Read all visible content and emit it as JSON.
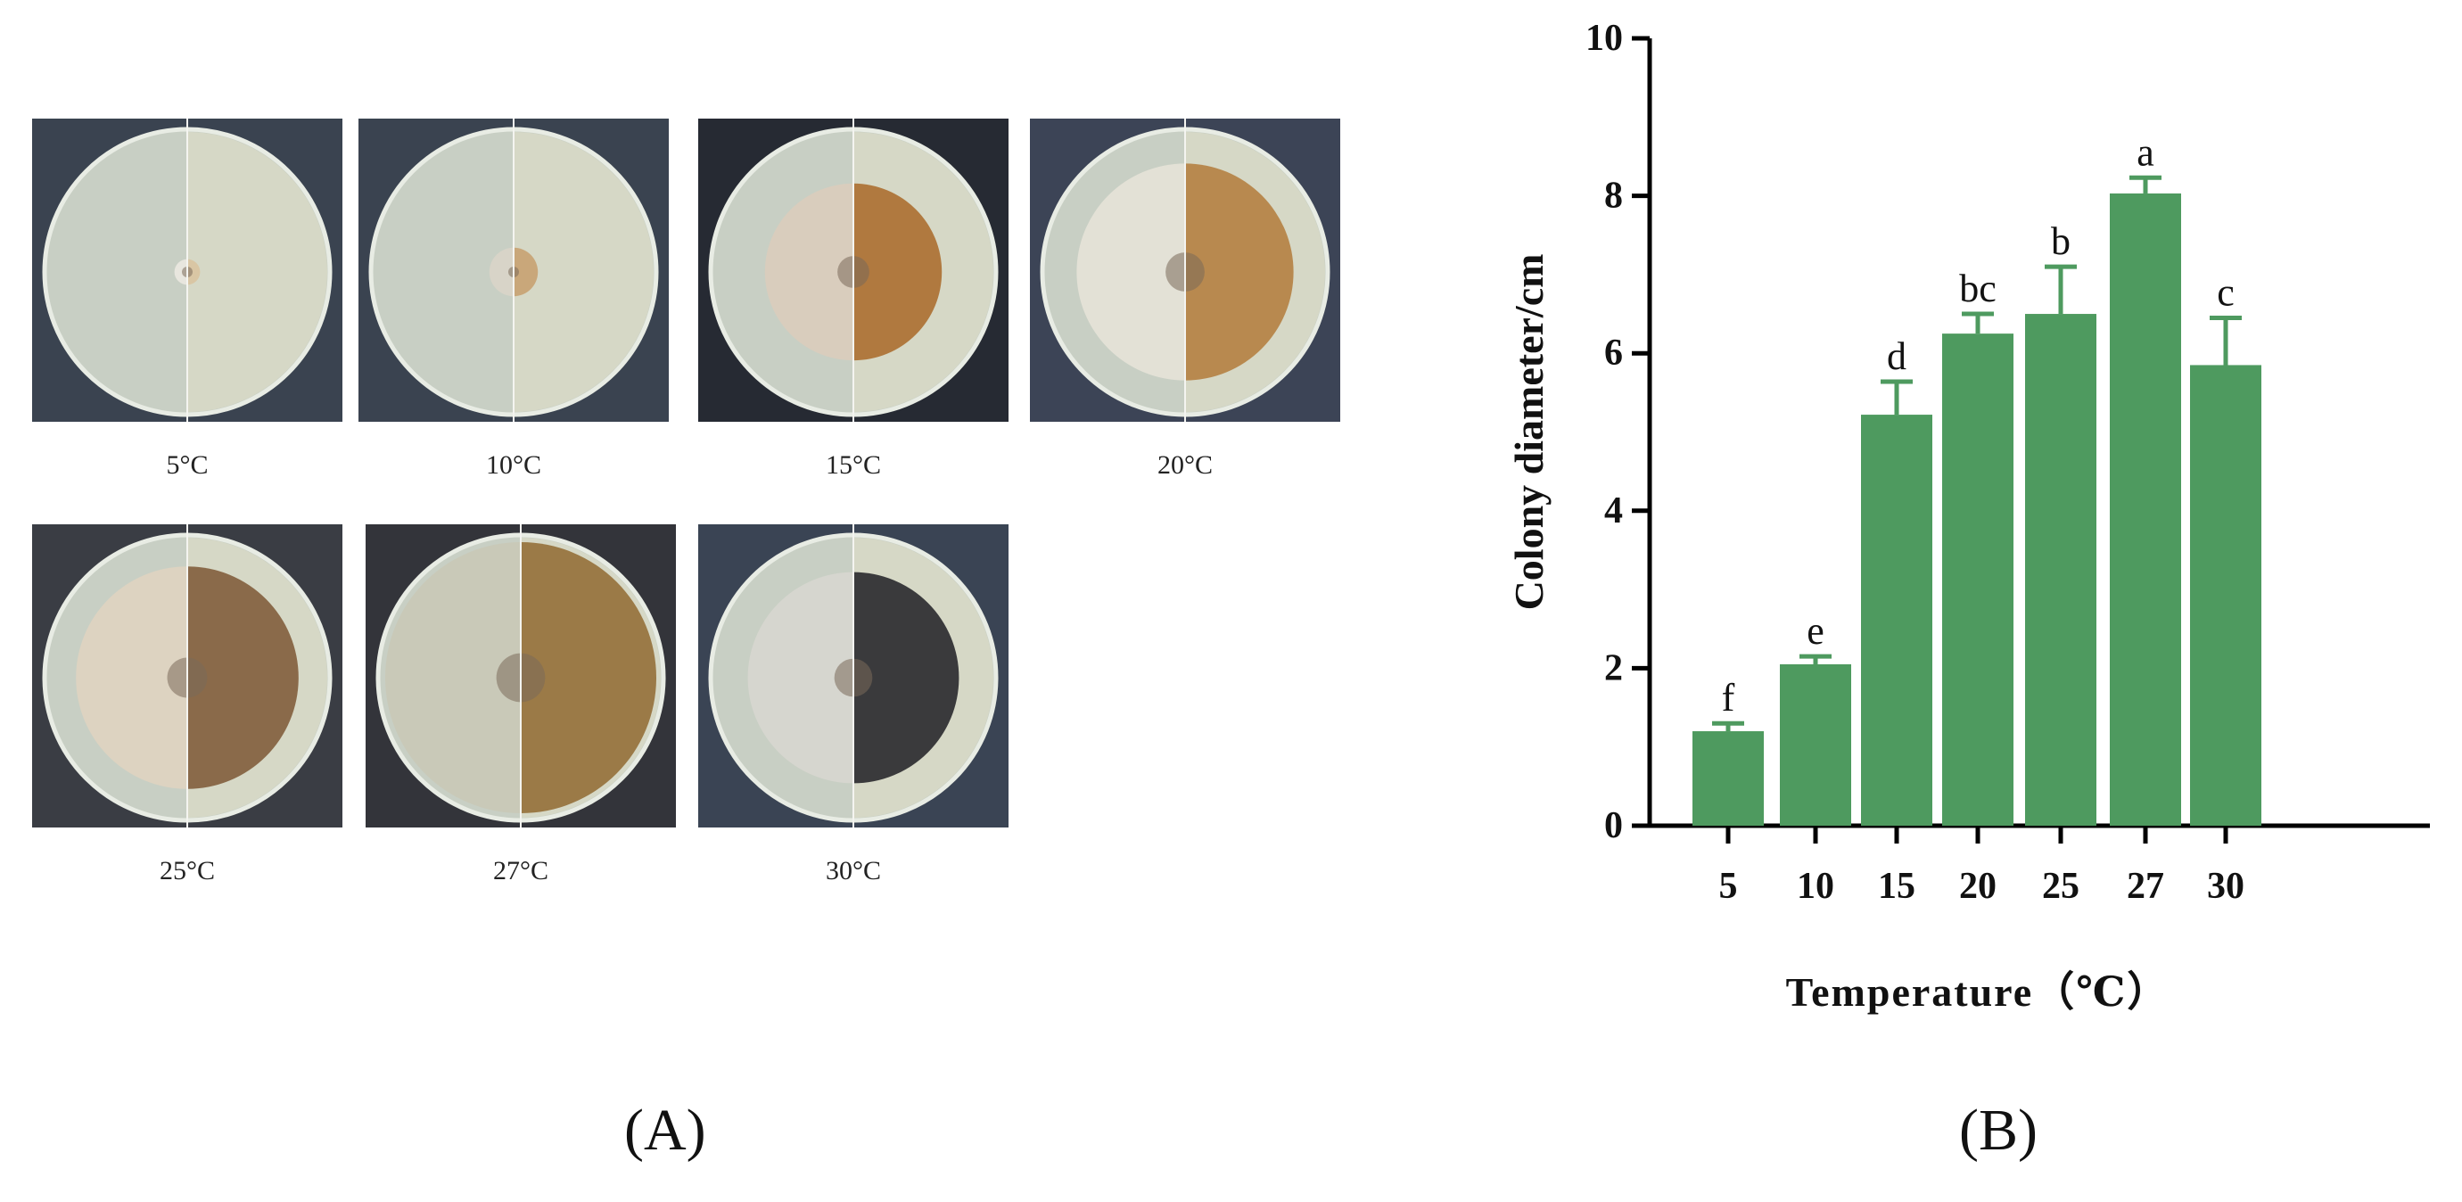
{
  "panel_a": {
    "label": "(A)",
    "plates": [
      {
        "temp_label": "5°C",
        "colony": 0.09,
        "left_color": "#e8e6de",
        "right_color": "#d9c6a4",
        "bg": "#3a4350"
      },
      {
        "temp_label": "10°C",
        "colony": 0.17,
        "left_color": "#d8d4c8",
        "right_color": "#c9a77a",
        "bg": "#3a4350"
      },
      {
        "temp_label": "15°C",
        "colony": 0.62,
        "left_color": "#d9cdbd",
        "right_color": "#b0793f",
        "bg": "#262a33"
      },
      {
        "temp_label": "20°C",
        "colony": 0.76,
        "left_color": "#e3e1d6",
        "right_color": "#b8894f",
        "bg": "#3c4456"
      },
      {
        "temp_label": "25°C",
        "colony": 0.78,
        "left_color": "#ddd3c1",
        "right_color": "#8a6a4a",
        "bg": "#3a3d44"
      },
      {
        "temp_label": "27°C",
        "colony": 0.95,
        "left_color": "#c9c9b8",
        "right_color": "#9b7a47",
        "bg": "#33343a"
      },
      {
        "temp_label": "30°C",
        "colony": 0.74,
        "left_color": "#d6d6cf",
        "right_color": "#3a3a3c",
        "bg": "#3a4454"
      }
    ]
  },
  "panel_b": {
    "label": "(B)"
  },
  "chart_data": {
    "type": "bar",
    "categories": [
      "5",
      "10",
      "15",
      "20",
      "25",
      "27",
      "30"
    ],
    "values": [
      1.2,
      2.05,
      5.22,
      6.25,
      6.5,
      8.03,
      5.85
    ],
    "errors": [
      0.1,
      0.1,
      0.42,
      0.25,
      0.6,
      0.2,
      0.6
    ],
    "significance_letters": [
      "f",
      "e",
      "d",
      "bc",
      "b",
      "a",
      "c"
    ],
    "xlabel": "Temperature（℃）",
    "ylabel": "Colony diameter/cm",
    "ylim": [
      0,
      10
    ],
    "yticks": [
      "0",
      "2",
      "4",
      "6",
      "8",
      "10"
    ],
    "bar_color": "#4e9a5f",
    "grid": false
  }
}
